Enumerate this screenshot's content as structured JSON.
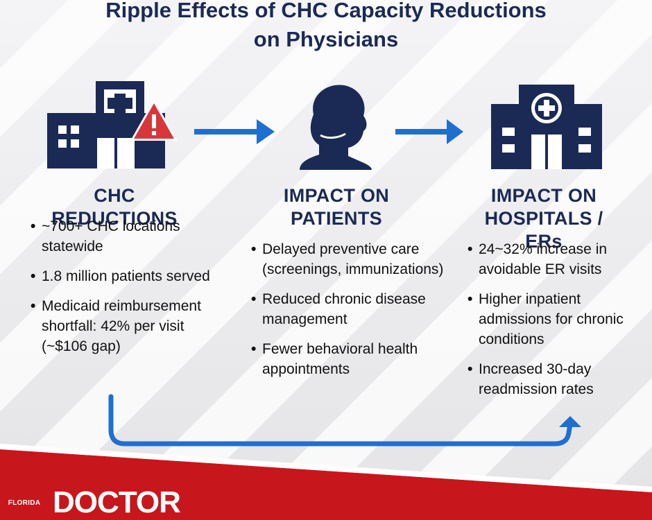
{
  "title": {
    "line1": "Ripple Effects of CHC Capacity Reductions",
    "line2": "on Physicians"
  },
  "colors": {
    "navy": "#1b2a55",
    "arrow_blue": "#1f6fd1",
    "warning_red": "#d8363a",
    "brand_red": "#c8161d"
  },
  "icons": [
    "building-warning-icon",
    "patient-icon",
    "hospital-icon",
    "right-arrow-icon",
    "return-arrow-icon"
  ],
  "columns": [
    {
      "heading_line1": "CHC REDUCTIONS",
      "heading_line2": "",
      "bullets": [
        "~700+ CHC locations statewide",
        "1.8 million patients served",
        "Medicaid reimbursement shortfall: 42% per visit (~$106 gap)"
      ]
    },
    {
      "heading_line1": "IMPACT ON",
      "heading_line2": "PATIENTS",
      "bullets": [
        "Delayed preventive care (screenings, immunizations)",
        "Reduced chronic disease management",
        "Fewer behavioral health appointments"
      ]
    },
    {
      "heading_line1": "IMPACT ON",
      "heading_line2": "HOSPITALS / ERs",
      "bullets": [
        "24~32% increase in avoidable ER visits",
        "Higher inpatient admissions for chronic conditions",
        "Increased 30-day readmission rates"
      ]
    }
  ],
  "footer": {
    "logo_small": "FLORIDA",
    "logo_large": "DOCTOR"
  }
}
